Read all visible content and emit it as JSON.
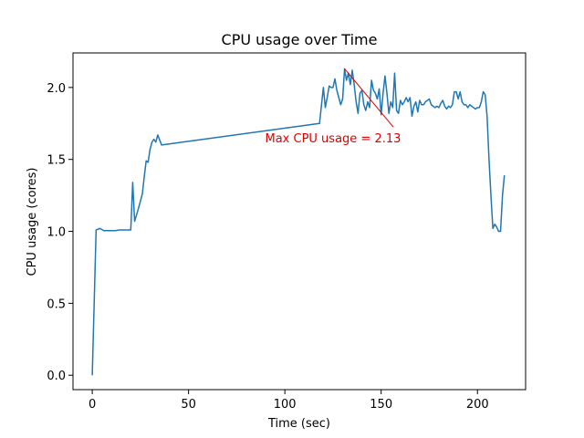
{
  "chart_data": {
    "type": "line",
    "title": "CPU usage over Time",
    "xlabel": "Time (sec)",
    "ylabel": "CPU usage (cores)",
    "xlim": [
      -10,
      225
    ],
    "ylim": [
      -0.1,
      2.24
    ],
    "xticks": [
      0,
      50,
      100,
      150,
      200
    ],
    "xtick_labels": [
      "0",
      "50",
      "100",
      "150",
      "200"
    ],
    "yticks": [
      0.0,
      0.5,
      1.0,
      1.5,
      2.0
    ],
    "ytick_labels": [
      "0.0",
      "0.5",
      "1.0",
      "1.5",
      "2.0"
    ],
    "grid": false,
    "series": [
      {
        "color": "#1f77b4",
        "x": [
          0,
          2,
          4,
          6,
          8,
          10,
          12,
          14,
          16,
          18,
          20,
          21,
          22,
          24,
          26,
          27,
          28,
          29,
          30,
          31,
          32,
          33,
          34,
          36,
          118,
          120,
          121,
          122,
          123,
          124,
          125,
          126,
          127,
          128,
          129,
          130,
          131,
          132,
          133,
          134,
          135,
          136,
          137,
          138,
          139,
          140,
          141,
          142,
          143,
          144,
          145,
          146,
          147,
          148,
          149,
          150,
          151,
          152,
          153,
          154,
          155,
          156,
          157,
          158,
          159,
          160,
          161,
          162,
          163,
          164,
          165,
          166,
          167,
          168,
          169,
          170,
          171,
          172,
          173,
          174,
          175,
          176,
          177,
          178,
          179,
          180,
          181,
          182,
          183,
          184,
          185,
          186,
          187,
          188,
          189,
          190,
          191,
          192,
          193,
          194,
          195,
          196,
          197,
          198,
          199,
          200,
          201,
          202,
          203,
          204,
          205,
          206,
          207,
          208,
          209,
          210,
          211,
          212,
          213,
          214
        ],
        "y": [
          0.0,
          1.01,
          1.02,
          1.005,
          1.005,
          1.005,
          1.005,
          1.01,
          1.01,
          1.01,
          1.01,
          1.34,
          1.07,
          1.16,
          1.26,
          1.38,
          1.49,
          1.48,
          1.57,
          1.62,
          1.64,
          1.62,
          1.67,
          1.6,
          1.75,
          2.0,
          1.86,
          1.93,
          2.01,
          2.0,
          2.0,
          2.06,
          1.98,
          1.93,
          1.88,
          1.92,
          2.13,
          2.05,
          2.1,
          2.02,
          2.12,
          2.02,
          1.9,
          1.82,
          1.96,
          1.98,
          1.88,
          1.84,
          1.9,
          1.86,
          2.05,
          1.98,
          1.96,
          1.92,
          1.99,
          1.81,
          1.96,
          2.08,
          1.96,
          1.82,
          1.9,
          1.86,
          2.1,
          1.84,
          1.82,
          1.91,
          1.88,
          1.9,
          1.93,
          1.9,
          1.93,
          1.8,
          1.87,
          1.9,
          1.83,
          1.91,
          1.88,
          1.88,
          1.9,
          1.91,
          1.92,
          1.88,
          1.87,
          1.86,
          1.87,
          1.86,
          1.89,
          1.91,
          1.87,
          1.85,
          1.87,
          1.86,
          1.88,
          1.97,
          1.97,
          1.92,
          1.97,
          1.9,
          1.88,
          1.88,
          1.86,
          1.88,
          1.87,
          1.86,
          1.85,
          1.86,
          1.86,
          1.9,
          1.97,
          1.95,
          1.8,
          1.5,
          1.25,
          1.02,
          1.05,
          1.03,
          1.0,
          1.0,
          1.25,
          1.39
        ]
      }
    ],
    "annotation": {
      "text": "Max CPU usage = 2.13",
      "color": "#e00000",
      "point": [
        131,
        2.13
      ],
      "text_anchor_point": [
        125,
        1.65
      ]
    }
  }
}
